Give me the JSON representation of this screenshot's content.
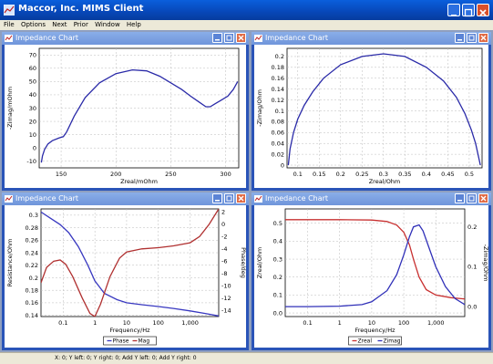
{
  "window": {
    "title": "Maccor, Inc. MIMS Client"
  },
  "menu": [
    "File",
    "Options",
    "Next",
    "Prior",
    "Window",
    "Help"
  ],
  "status": {
    "text": "X: 0; Y left: 0; Y right: 0; Add Y left: 0; Add Y right: 0"
  },
  "panels": [
    {
      "title": "Impedance Chart",
      "chart_data": {
        "type": "line",
        "xlabel": "Zreal/mOhm",
        "ylabel": "-Zimag/mOhm",
        "xlim": [
          130,
          312
        ],
        "ylim": [
          -15,
          75
        ],
        "xticks": [
          "150",
          "200",
          "250",
          "300"
        ],
        "yticks": [
          "-10",
          "0",
          "10",
          "20",
          "30",
          "40",
          "50",
          "60",
          "70"
        ],
        "series": [
          {
            "color": "#2a2aa8",
            "x": [
              132,
              133,
              135,
              138,
              142,
              148,
              152,
              155,
              162,
              172,
              185,
              200,
              215,
              228,
              240,
              250,
              260,
              268,
              275,
              282,
              286,
              290,
              296,
              302,
              307,
              311
            ],
            "y": [
              -11,
              -6,
              -1,
              3,
              5.5,
              7.5,
              8.5,
              12,
              24,
              38,
              49,
              56,
              58.8,
              58,
              54,
              49,
              44,
              39,
              35,
              31,
              31,
              33,
              36,
              39,
              44,
              50
            ]
          }
        ]
      }
    },
    {
      "title": "Impedance Chart",
      "chart_data": {
        "type": "line",
        "xlabel": "Zreal/Ohm",
        "ylabel": "-Zimag/Ohm",
        "xlim": [
          0.075,
          0.53
        ],
        "ylim": [
          -0.005,
          0.215
        ],
        "xticks": [
          "0.1",
          "0.15",
          "0.2",
          "0.25",
          "0.3",
          "0.35",
          "0.4",
          "0.45",
          "0.5"
        ],
        "yticks": [
          "0",
          "0.02",
          "0.04",
          "0.06",
          "0.08",
          "0.1",
          "0.12",
          "0.14",
          "0.16",
          "0.18",
          "0.2"
        ],
        "series": [
          {
            "color": "#2a2aa8",
            "x": [
              0.078,
              0.082,
              0.09,
              0.1,
              0.115,
              0.135,
              0.16,
              0.2,
              0.25,
              0.3,
              0.35,
              0.4,
              0.44,
              0.47,
              0.49,
              0.505,
              0.515,
              0.522,
              0.526
            ],
            "y": [
              0.0,
              0.03,
              0.06,
              0.085,
              0.11,
              0.135,
              0.16,
              0.185,
              0.2,
              0.205,
              0.2,
              0.18,
              0.155,
              0.125,
              0.095,
              0.065,
              0.04,
              0.015,
              0.0
            ]
          }
        ]
      }
    },
    {
      "title": "Impedance Chart",
      "chart_data": {
        "type": "line",
        "xlabel": "Frequency/Hz",
        "ylabel": "Resistance/Ohm",
        "ylabel_right": "Phase/deg",
        "xscale": "log",
        "xlim": [
          0.02,
          8000
        ],
        "ylim": [
          0.138,
          0.31
        ],
        "ylim_right": [
          -15,
          2.5
        ],
        "xticks": [
          "0.1",
          "1",
          "10",
          "100",
          "1,000"
        ],
        "yticks": [
          "0.14",
          "0.16",
          "0.18",
          "0.2",
          "0.22",
          "0.24",
          "0.26",
          "0.28",
          "0.3"
        ],
        "yticks_right": [
          "-14",
          "-12",
          "-10",
          "-8",
          "-6",
          "-4",
          "-2",
          "0",
          "2"
        ],
        "legend": [
          "Phase",
          "Mag"
        ],
        "legend_placement": "bottom",
        "series": [
          {
            "name": "Phase",
            "color": "#3838c0",
            "axis": "left",
            "x": [
              0.02,
              0.04,
              0.08,
              0.15,
              0.3,
              0.6,
              1,
              2,
              5,
              10,
              30,
              100,
              300,
              1000,
              3000,
              8000
            ],
            "y": [
              0.305,
              0.295,
              0.285,
              0.272,
              0.25,
              0.22,
              0.195,
              0.175,
              0.165,
              0.16,
              0.157,
              0.154,
              0.151,
              0.147,
              0.143,
              0.139
            ]
          },
          {
            "name": "Mag",
            "color": "#b03030",
            "axis": "right",
            "x": [
              0.02,
              0.03,
              0.05,
              0.08,
              0.12,
              0.2,
              0.4,
              0.7,
              1,
              1.5,
              3,
              6,
              10,
              30,
              100,
              300,
              1000,
              2000,
              4000,
              8000
            ],
            "y": [
              -9.5,
              -7,
              -6,
              -5.8,
              -6.5,
              -8.5,
              -12,
              -14.5,
              -15,
              -13,
              -8.5,
              -5.5,
              -4.5,
              -4,
              -3.8,
              -3.5,
              -3,
              -2,
              0,
              2.5
            ]
          }
        ]
      }
    },
    {
      "title": "Impedance Chart",
      "chart_data": {
        "type": "line",
        "xlabel": "Frequency/Hz",
        "ylabel": "Zreal/Ohm",
        "ylabel_right": "-Zimag/Ohm",
        "xscale": "log",
        "xlim": [
          0.02,
          8000
        ],
        "ylim": [
          -0.02,
          0.58
        ],
        "ylim_right": [
          -0.025,
          0.245
        ],
        "xticks": [
          "0.1",
          "1",
          "10",
          "100",
          "1,000"
        ],
        "yticks": [
          "0.0",
          "0.1",
          "0.2",
          "0.3",
          "0.4",
          "0.5"
        ],
        "yticks_right": [
          "0.0",
          "0.1",
          "0.2"
        ],
        "legend": [
          "Zreal",
          "Zimag"
        ],
        "legend_placement": "bottom",
        "series": [
          {
            "name": "Zreal",
            "color": "#c83030",
            "axis": "left",
            "x": [
              0.02,
              1,
              10,
              30,
              60,
              100,
              150,
              200,
              300,
              500,
              1000,
              3000,
              8000
            ],
            "y": [
              0.52,
              0.52,
              0.518,
              0.51,
              0.49,
              0.45,
              0.38,
              0.3,
              0.2,
              0.13,
              0.1,
              0.085,
              0.078
            ]
          },
          {
            "name": "Zimag",
            "color": "#3030b8",
            "axis": "right",
            "x": [
              0.02,
              0.1,
              1,
              5,
              10,
              30,
              60,
              100,
              150,
              200,
              300,
              400,
              600,
              1000,
              2000,
              4000,
              8000
            ],
            "y": [
              0.0,
              0.0,
              0.001,
              0.005,
              0.012,
              0.04,
              0.08,
              0.13,
              0.175,
              0.2,
              0.205,
              0.19,
              0.15,
              0.1,
              0.05,
              0.02,
              0.005
            ]
          }
        ]
      }
    }
  ]
}
